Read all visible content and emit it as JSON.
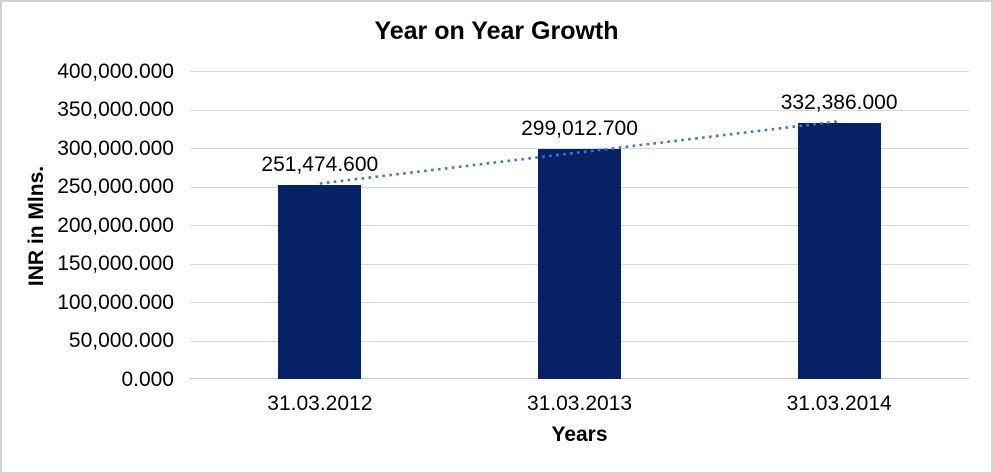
{
  "chart_data": {
    "type": "bar",
    "title": "Year on Year Growth",
    "xlabel": "Years",
    "ylabel": "INR in Mlns.",
    "categories": [
      "31.03.2012",
      "31.03.2013",
      "31.03.2014"
    ],
    "values": [
      251474.6,
      299012.7,
      332386.0
    ],
    "data_labels": [
      "251,474.600",
      "299,012.700",
      "332,386.000"
    ],
    "y_ticks_top_down": [
      "400,000.000",
      "350,000.000",
      "300,000.000",
      "250,000.000",
      "200,000.000",
      "150,000.000",
      "100,000.000",
      "50,000.000",
      "0.000"
    ],
    "ylim": [
      0,
      400000
    ],
    "grid": true,
    "legend": "none",
    "bar_color": "#062165",
    "trendline": {
      "type": "linear",
      "style": "dotted",
      "color": "#4377c9"
    },
    "gridline_color": "#d9d9d9",
    "axis_line_color": "#c6c6c6",
    "text_color": "#000000"
  }
}
